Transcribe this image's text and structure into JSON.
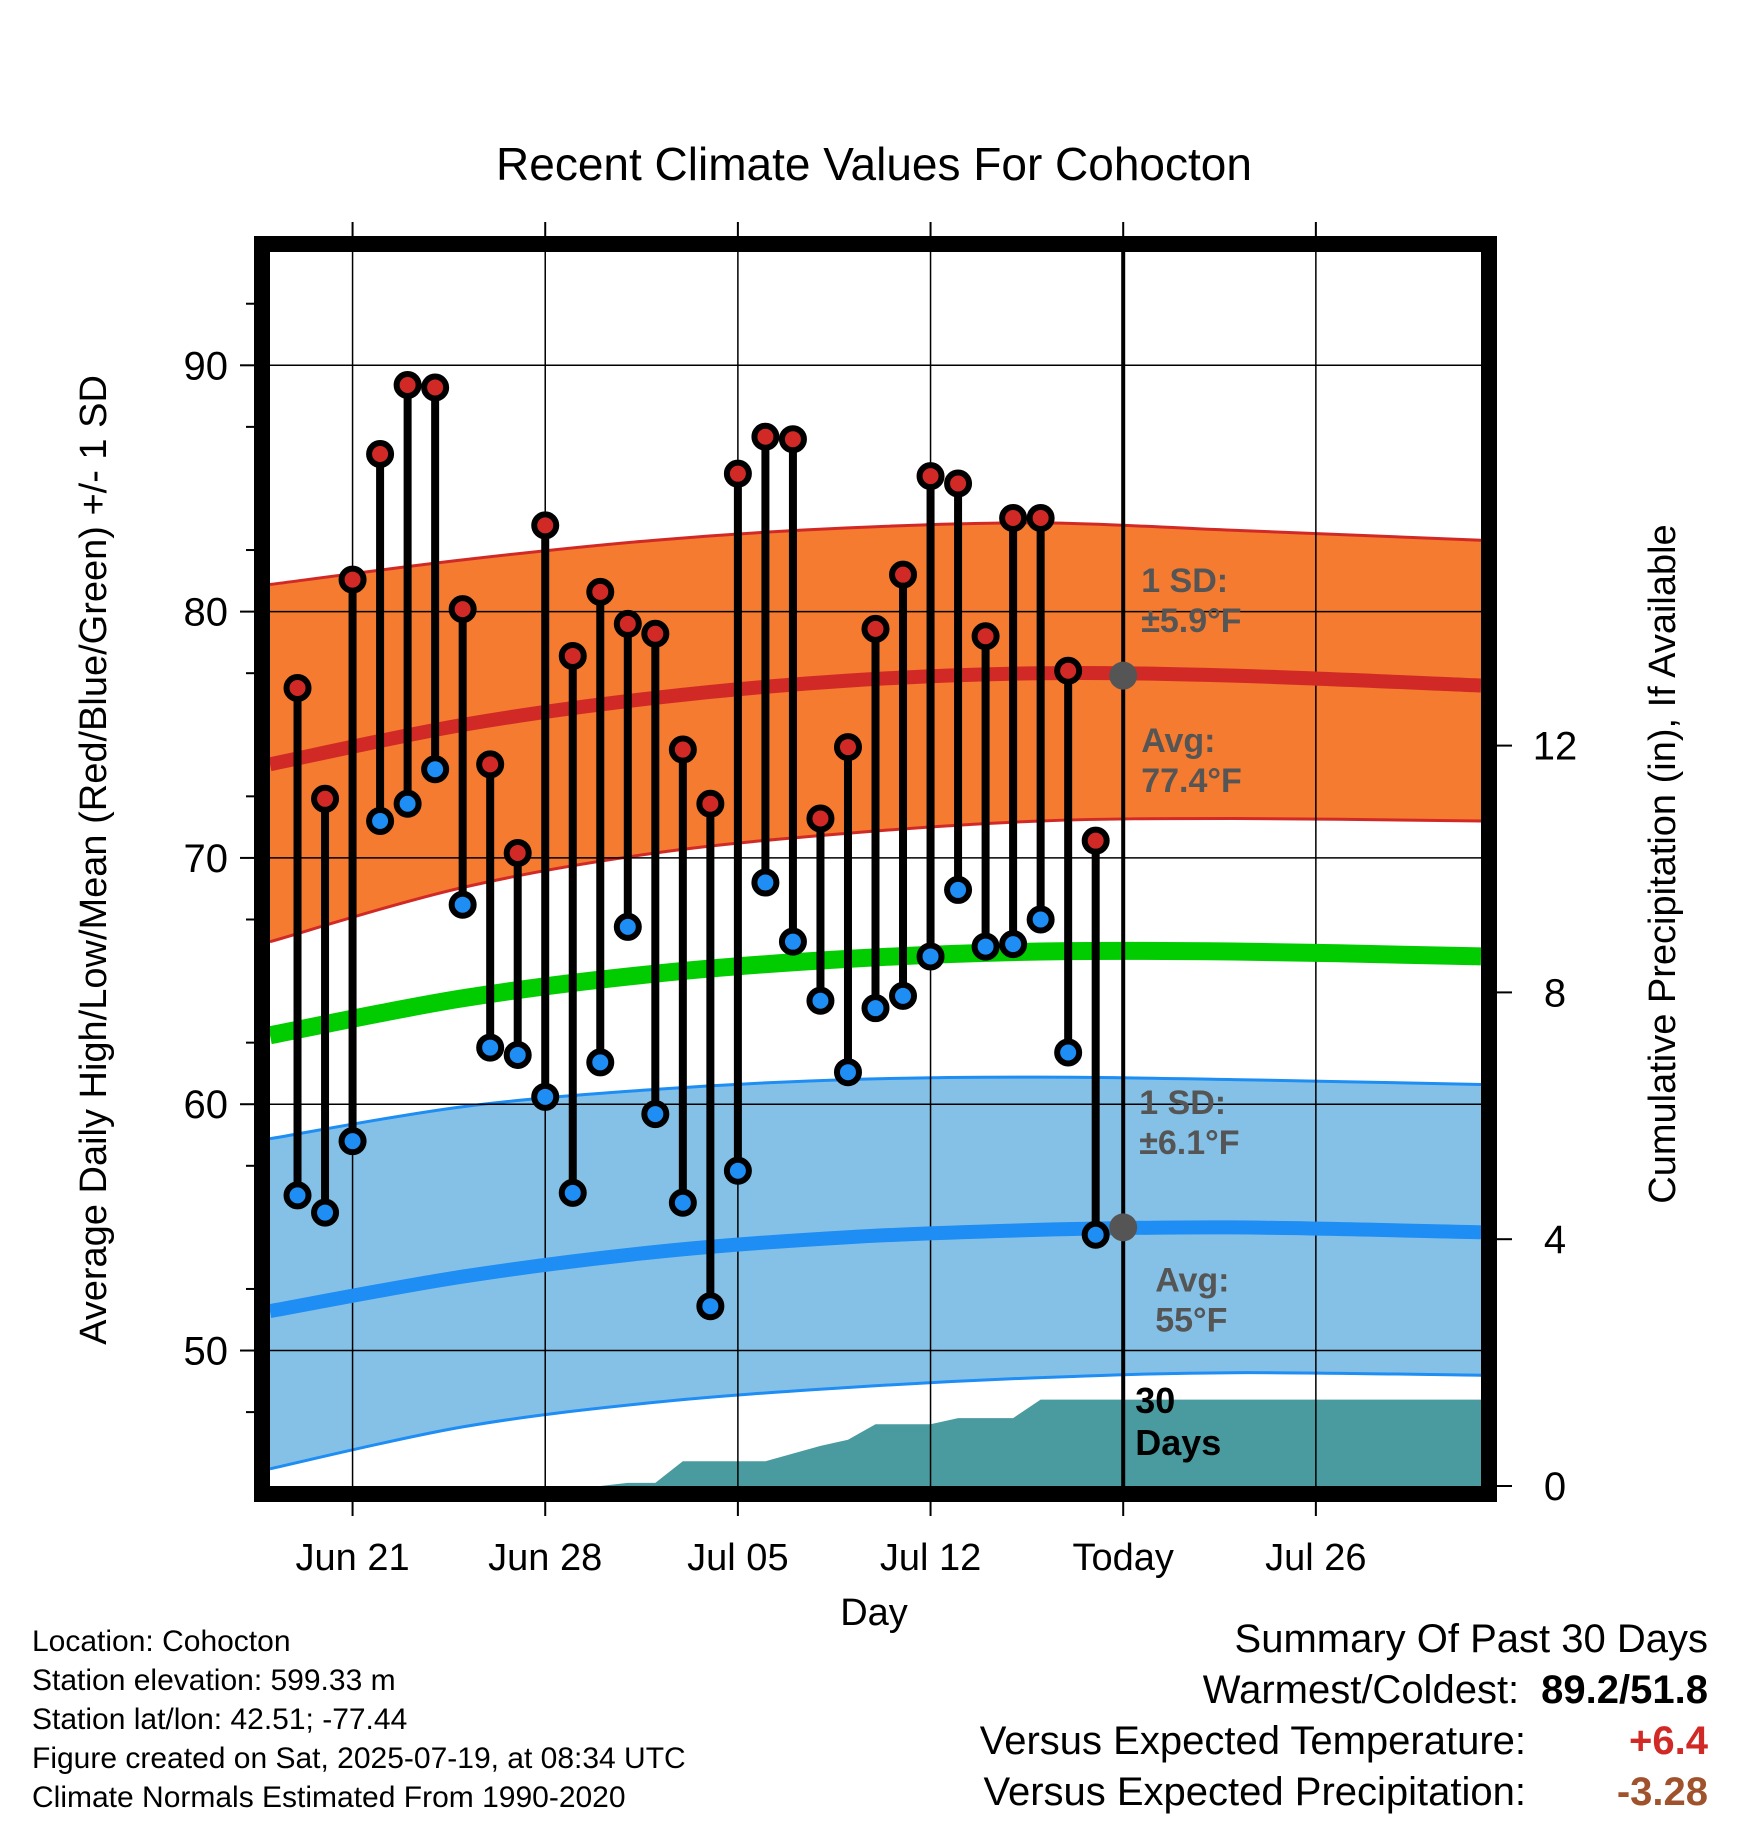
{
  "chart_data": {
    "type": "line",
    "title": "Recent Climate Values For Cohocton",
    "xlabel": "Day",
    "ylabel": "Average Daily High/Low/Mean (Red/Blue/Green) +/- 1 SD",
    "y2label": "Cumulative Precipitation (in), If Available",
    "xlim": [
      "2025-06-18",
      "2025-08-01"
    ],
    "ylim": [
      44.5,
      94.6
    ],
    "y2lim": [
      0,
      20
    ],
    "xticks": [
      {
        "date": "2025-06-21",
        "label": "Jun 21"
      },
      {
        "date": "2025-06-28",
        "label": "Jun 28"
      },
      {
        "date": "2025-07-05",
        "label": "Jul 05"
      },
      {
        "date": "2025-07-12",
        "label": "Jul 12"
      },
      {
        "date": "2025-07-19",
        "label": "Today"
      },
      {
        "date": "2025-07-26",
        "label": "Jul 26"
      }
    ],
    "yticks": [
      50,
      60,
      70,
      80,
      90
    ],
    "y2ticks": [
      0,
      4,
      8,
      12
    ],
    "grid": true,
    "today": "2025-07-19",
    "today_label": [
      "30",
      "Days"
    ],
    "daily": {
      "dates": [
        "2025-06-19",
        "2025-06-20",
        "2025-06-21",
        "2025-06-22",
        "2025-06-23",
        "2025-06-24",
        "2025-06-25",
        "2025-06-26",
        "2025-06-27",
        "2025-06-28",
        "2025-06-29",
        "2025-06-30",
        "2025-07-01",
        "2025-07-02",
        "2025-07-03",
        "2025-07-04",
        "2025-07-05",
        "2025-07-06",
        "2025-07-07",
        "2025-07-08",
        "2025-07-09",
        "2025-07-10",
        "2025-07-11",
        "2025-07-12",
        "2025-07-13",
        "2025-07-14",
        "2025-07-15",
        "2025-07-16",
        "2025-07-17",
        "2025-07-18"
      ],
      "highs": [
        76.9,
        72.4,
        81.3,
        86.4,
        89.2,
        89.1,
        80.1,
        73.8,
        70.2,
        83.5,
        78.2,
        80.8,
        79.5,
        79.1,
        74.4,
        72.2,
        85.6,
        87.1,
        87.0,
        71.6,
        74.5,
        79.3,
        81.5,
        85.5,
        85.2,
        79.0,
        83.8,
        83.8,
        77.6,
        70.7
      ],
      "lows": [
        56.3,
        55.6,
        58.5,
        71.5,
        72.2,
        73.6,
        68.1,
        62.3,
        62.0,
        60.3,
        56.4,
        61.7,
        67.2,
        59.6,
        56.0,
        51.8,
        57.3,
        69.0,
        66.6,
        64.2,
        61.3,
        63.9,
        64.4,
        66.0,
        68.7,
        66.4,
        66.5,
        67.5,
        62.1,
        54.7
      ]
    },
    "normals": {
      "dates": [
        "2025-06-18",
        "2025-06-25",
        "2025-07-02",
        "2025-07-09",
        "2025-07-16",
        "2025-07-23",
        "2025-08-01"
      ],
      "high_mean": [
        73.8,
        75.4,
        76.5,
        77.2,
        77.5,
        77.4,
        77.0
      ],
      "high_upper": [
        81.1,
        82.1,
        82.9,
        83.4,
        83.6,
        83.3,
        82.9
      ],
      "high_lower": [
        66.6,
        68.8,
        70.2,
        71.0,
        71.5,
        71.6,
        71.5
      ],
      "mean": [
        62.8,
        64.3,
        65.3,
        65.9,
        66.2,
        66.2,
        66.0
      ],
      "low_mean": [
        51.6,
        53.0,
        54.0,
        54.6,
        54.9,
        55.0,
        54.8
      ],
      "low_upper": [
        58.6,
        59.9,
        60.6,
        61.0,
        61.1,
        61.0,
        60.8
      ],
      "low_lower": [
        45.2,
        46.9,
        47.9,
        48.5,
        48.9,
        49.1,
        49.0
      ]
    },
    "precip": {
      "dates": [
        "2025-06-18",
        "2025-06-30",
        "2025-07-01",
        "2025-07-02",
        "2025-07-03",
        "2025-07-06",
        "2025-07-08",
        "2025-07-09",
        "2025-07-10",
        "2025-07-12",
        "2025-07-13",
        "2025-07-15",
        "2025-07-16",
        "2025-07-19",
        "2025-08-01"
      ],
      "values": [
        0.0,
        0.0,
        0.05,
        0.05,
        0.4,
        0.4,
        0.65,
        0.75,
        1.0,
        1.0,
        1.1,
        1.1,
        1.4,
        1.4,
        1.4
      ]
    },
    "annotations": [
      {
        "lines": [
          "1 SD:",
          "±5.9°F"
        ],
        "anchor_date": "2025-07-19",
        "anchor_value": 80.8
      },
      {
        "lines": [
          "Avg:",
          "77.4°F"
        ],
        "anchor_date": "2025-07-19",
        "anchor_value": 74.3
      },
      {
        "lines": [
          "1 SD:",
          "±6.1°F"
        ],
        "anchor_date": "2025-07-19",
        "anchor_value": 59.6
      },
      {
        "lines": [
          "Avg:",
          "55°F"
        ],
        "anchor_date": "2025-07-19",
        "anchor_value": 52.4
      }
    ],
    "today_markers": [
      77.4,
      55.0
    ],
    "colors": {
      "high_band": "#f47b30",
      "high_line": "#d12a26",
      "low_band": "#85c1e6",
      "low_line": "#1e8df4",
      "mean_line": "#00cc00",
      "precip": "#4a9ba0",
      "high_dot": "#d12a26",
      "low_dot": "#1e8df4",
      "annotation_text": "#555555",
      "today_marker": "#555555"
    }
  },
  "info": {
    "location": "Location: Cohocton",
    "elevation": "Station elevation: 599.33 m",
    "latlon": "Station lat/lon: 42.51; -77.44",
    "created": "Figure created on Sat, 2025-07-19, at 08:34 UTC",
    "normals": "Climate Normals Estimated From 1990-2020"
  },
  "summary": {
    "title": "Summary Of Past 30 Days",
    "warm_cold_label": "Warmest/Coldest:",
    "warm_cold_value": "89.2/51.8",
    "temp_label": "Versus Expected Temperature:",
    "temp_value": "+6.4",
    "temp_color": "#d12a26",
    "precip_label": "Versus Expected Precipitation:",
    "precip_value": "-3.28",
    "precip_color": "#a0522d"
  }
}
